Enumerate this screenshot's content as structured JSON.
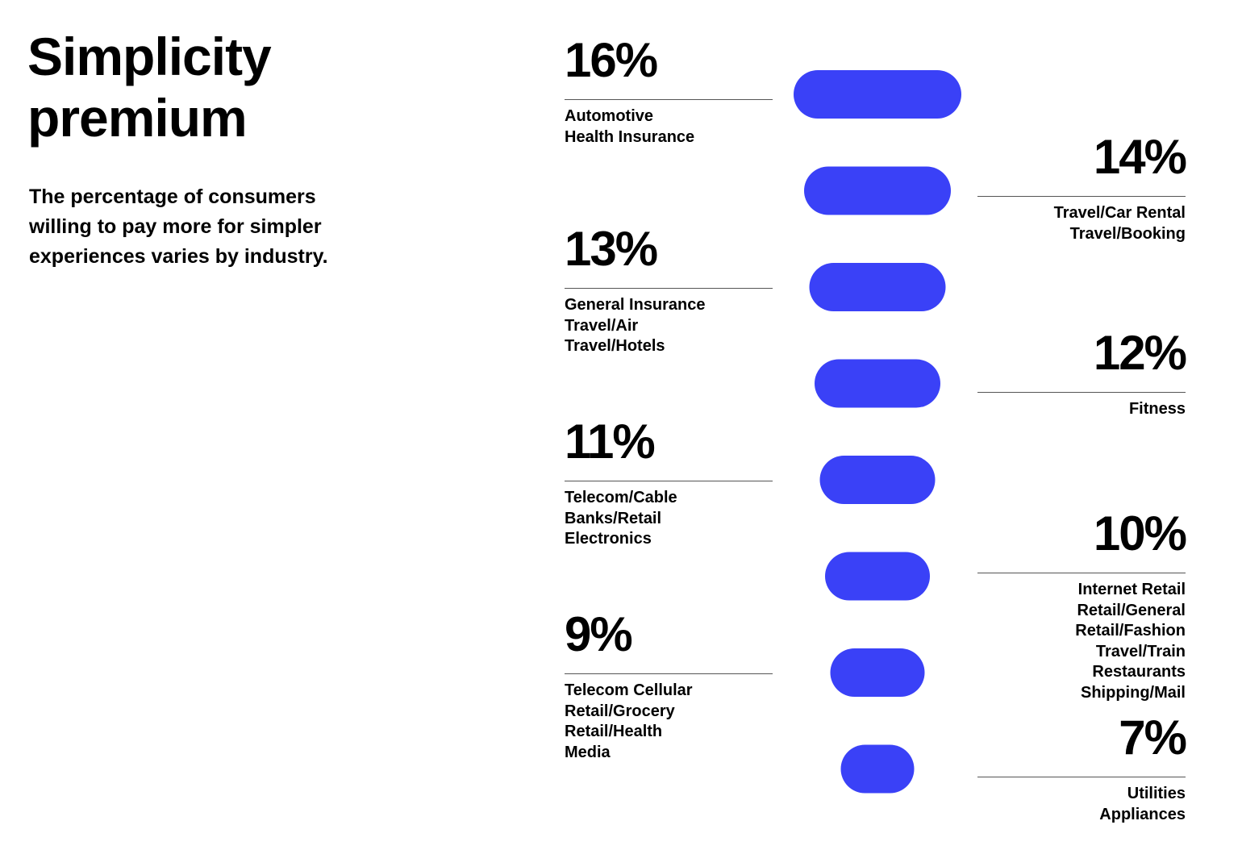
{
  "title": "Simplicity\npremium",
  "subtitle": "The percentage of consumers\nwilling to pay more for simpler\nexperiences varies by industry.",
  "colors": {
    "bar": "#3a41f7",
    "text": "#000000",
    "rule": "#555555"
  },
  "chart_data": {
    "type": "bar",
    "orientation": "horizontal-centered",
    "categories": [
      "16%",
      "14%",
      "13%",
      "12%",
      "11%",
      "10%",
      "9%",
      "7%"
    ],
    "values": [
      16,
      14,
      13,
      12,
      11,
      10,
      9,
      7
    ],
    "groups": [
      {
        "label": "16%",
        "value": 16,
        "side": "left",
        "industries": [
          "Automotive",
          "Health Insurance"
        ]
      },
      {
        "label": "14%",
        "value": 14,
        "side": "right",
        "industries": [
          "Travel/Car Rental",
          "Travel/Booking"
        ]
      },
      {
        "label": "13%",
        "value": 13,
        "side": "left",
        "industries": [
          "General Insurance",
          "Travel/Air",
          "Travel/Hotels"
        ]
      },
      {
        "label": "12%",
        "value": 12,
        "side": "right",
        "industries": [
          "Fitness"
        ]
      },
      {
        "label": "11%",
        "value": 11,
        "side": "left",
        "industries": [
          "Telecom/Cable",
          "Banks/Retail",
          "Electronics"
        ]
      },
      {
        "label": "10%",
        "value": 10,
        "side": "right",
        "industries": [
          "Internet Retail",
          "Retail/General",
          "Retail/Fashion",
          "Travel/Train",
          "Restaurants",
          "Shipping/Mail"
        ]
      },
      {
        "label": "9%",
        "value": 9,
        "side": "left",
        "industries": [
          "Telecom Cellular",
          "Retail/Grocery",
          "Retail/Health",
          "Media"
        ]
      },
      {
        "label": "7%",
        "value": 7,
        "side": "right",
        "industries": [
          "Utilities",
          "Appliances"
        ]
      }
    ]
  }
}
